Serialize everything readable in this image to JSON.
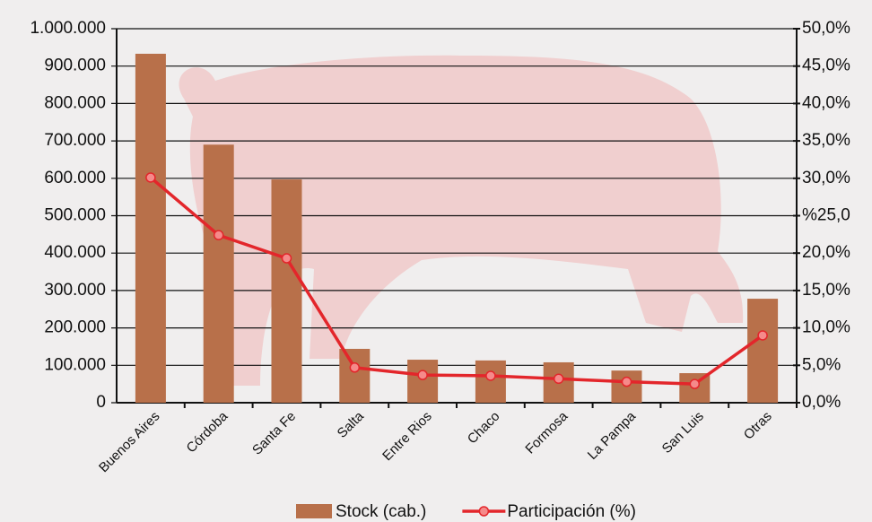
{
  "chart_data": {
    "type": "bar",
    "categories": [
      "Buenos Aires",
      "Córdoba",
      "Santa Fe",
      "Salta",
      "Entre Rios",
      "Chaco",
      "Formosa",
      "La Pampa",
      "San Luis",
      "Otras"
    ],
    "series": [
      {
        "name": "Stock (cab.)",
        "type": "bar",
        "color": "#b8704a",
        "values": [
          933000,
          690000,
          597000,
          144000,
          115000,
          113000,
          108000,
          86000,
          79000,
          278000
        ]
      },
      {
        "name": "Participación (%)",
        "type": "line",
        "axis": "y2",
        "color": "#e3262b",
        "values": [
          30.1,
          22.4,
          19.3,
          4.7,
          3.7,
          3.6,
          3.2,
          2.8,
          2.5,
          9.0
        ]
      }
    ],
    "ylim": [
      0,
      1000000
    ],
    "yticks": [
      0,
      {
        "value": 100000,
        "label": "100.000"
      },
      {
        "value": 200000,
        "label": "200.000"
      },
      {
        "value": 300000,
        "label": "300.000"
      },
      {
        "value": 400000,
        "label": "400.000"
      },
      {
        "value": 500000,
        "label": "500.000"
      },
      {
        "value": 600000,
        "label": "600.000"
      },
      {
        "value": 700000,
        "label": "700.000"
      },
      {
        "value": 800000,
        "label": "800.000"
      },
      {
        "value": 900000,
        "label": "900.000"
      },
      {
        "value": 1000000,
        "label": "1.000.000"
      }
    ],
    "y2lim": [
      0,
      50
    ],
    "y2ticks": [
      {
        "value": 0,
        "label": "0,0%"
      },
      {
        "value": 5,
        "label": "5,0%"
      },
      {
        "value": 10,
        "label": "10,0%"
      },
      {
        "value": 15,
        "label": "15,0%"
      },
      {
        "value": 20,
        "label": "20,0%"
      },
      {
        "value": 25,
        "label": "%25,0"
      },
      {
        "value": 30,
        "label": "30,0%"
      },
      {
        "value": 35,
        "label": "35,0%"
      },
      {
        "value": 40,
        "label": "40,0%"
      },
      {
        "value": 45,
        "label": "45,0%"
      },
      {
        "value": 50,
        "label": "50,0%"
      }
    ],
    "grid": true
  }
}
